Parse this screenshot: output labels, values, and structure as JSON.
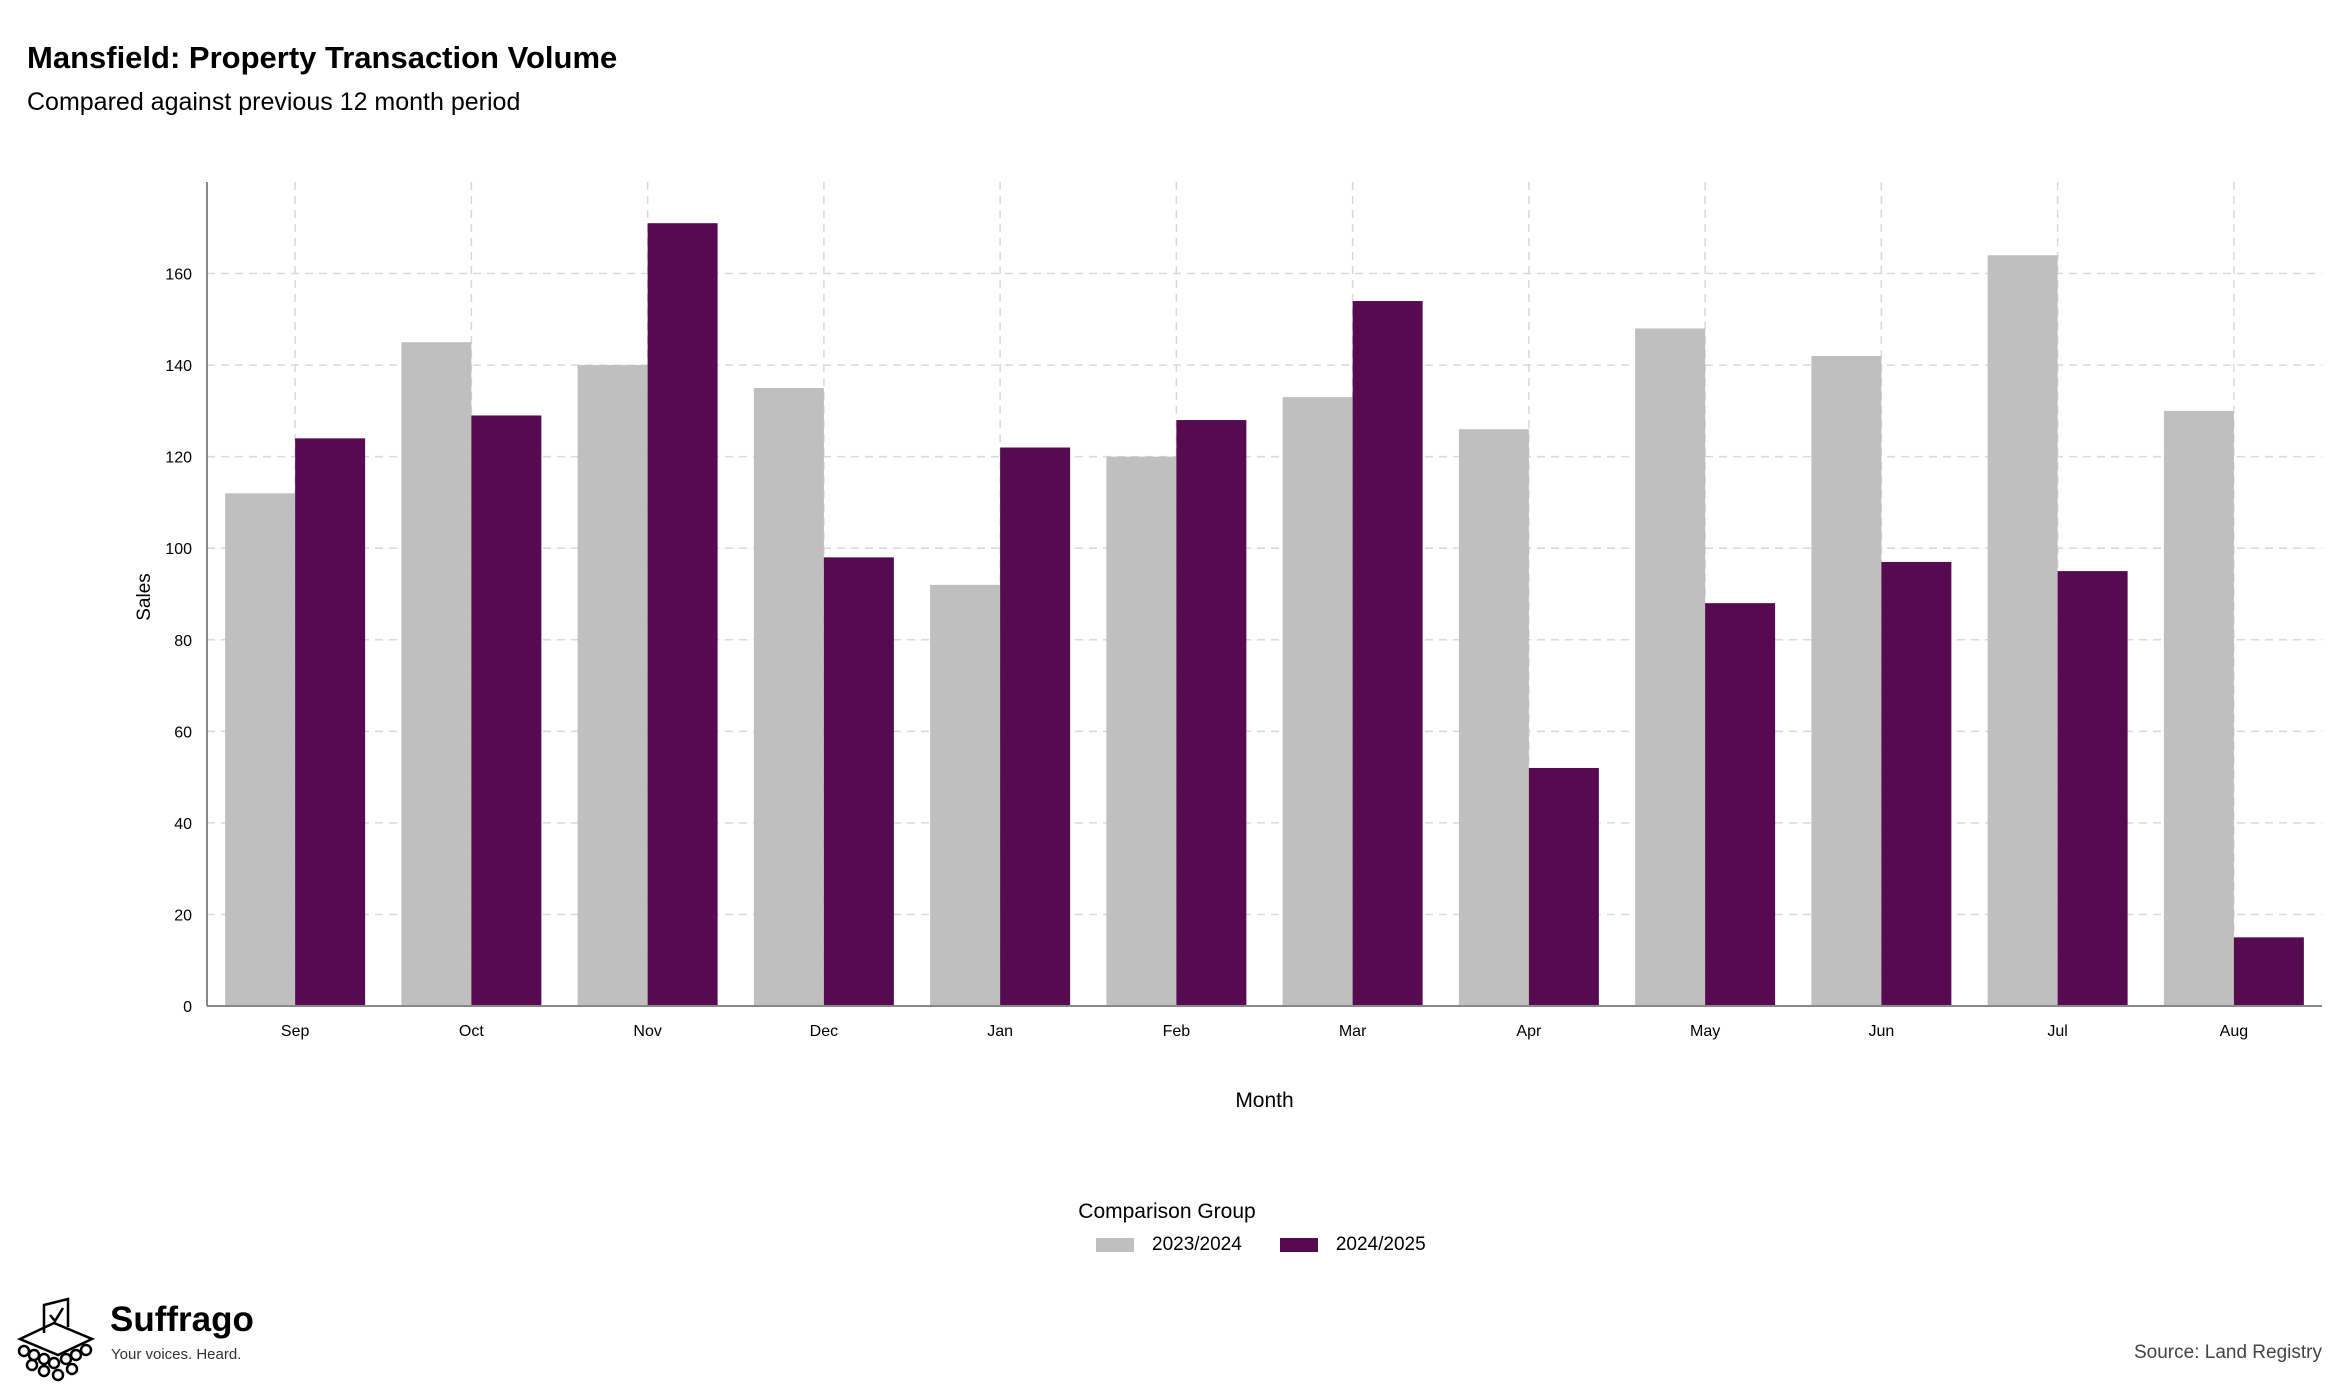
{
  "header": {
    "title": "Mansfield: Property Transaction Volume",
    "subtitle": "Compared against previous 12 month period"
  },
  "legend": {
    "title": "Comparison Group"
  },
  "footer": {
    "brand": "Suffrago",
    "tagline": "Your voices. Heard.",
    "source": "Source: Land Registry"
  },
  "chart_data": {
    "type": "bar",
    "title": "Mansfield: Property Transaction Volume",
    "subtitle": "Compared against previous 12 month period",
    "xlabel": "Month",
    "ylabel": "Sales",
    "categories": [
      "Sep",
      "Oct",
      "Nov",
      "Dec",
      "Jan",
      "Feb",
      "Mar",
      "Apr",
      "May",
      "Jun",
      "Jul",
      "Aug"
    ],
    "series": [
      {
        "name": "2023/2024",
        "color": "#bfbfbf",
        "values": [
          112,
          145,
          140,
          135,
          92,
          120,
          133,
          126,
          148,
          142,
          164,
          130
        ]
      },
      {
        "name": "2024/2025",
        "color": "#560b51",
        "values": [
          124,
          129,
          171,
          98,
          122,
          128,
          154,
          52,
          88,
          97,
          95,
          15
        ]
      }
    ],
    "ylim": [
      0,
      180
    ],
    "yticks": [
      0,
      20,
      40,
      60,
      80,
      100,
      120,
      140,
      160
    ],
    "grid": true,
    "legend_position": "bottom"
  }
}
